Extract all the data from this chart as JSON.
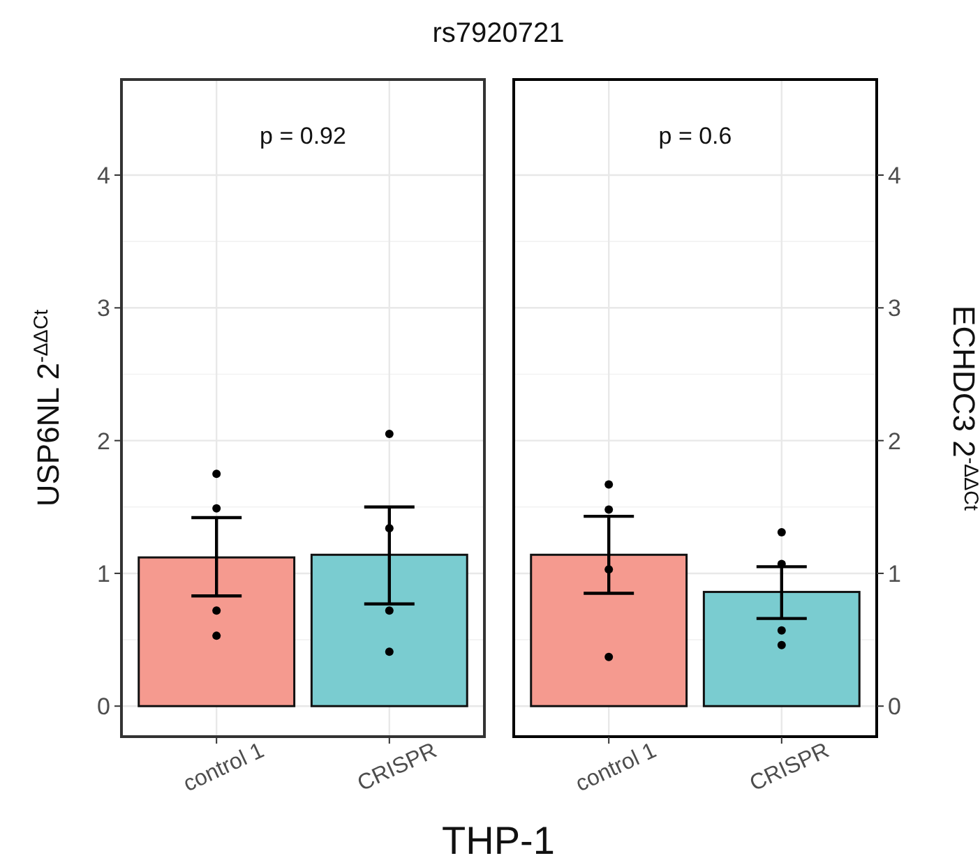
{
  "chart_data": [
    {
      "type": "bar",
      "title": "rs7920721",
      "xlabel": "THP-1",
      "ylabel": "USP6NL 2$^{-ΔΔCt}$",
      "categories": [
        "control 1",
        "CRISPR"
      ],
      "annotations": [
        "p = 0.92"
      ],
      "ylim": [
        -0.23,
        4.72
      ],
      "yticks": [
        0,
        1,
        2,
        3,
        4
      ],
      "grid": true,
      "series": [
        {
          "colors": [
            "#f59a8f",
            "#7accd0"
          ],
          "values": [
            1.12,
            1.14
          ],
          "errors": [
            [
              0.83,
              1.42
            ],
            [
              0.77,
              1.5
            ]
          ]
        },
        {
          "type": "scatter",
          "color": "#000000",
          "marker": "circle",
          "x": [
            "control 1",
            "control 1",
            "control 1",
            "control 1",
            "CRISPR",
            "CRISPR",
            "CRISPR",
            "CRISPR"
          ],
          "values": [
            1.75,
            1.49,
            0.72,
            0.53,
            2.05,
            1.34,
            0.72,
            0.41
          ]
        }
      ]
    },
    {
      "type": "bar",
      "y2label": "ECHDC3 2$^{-ΔΔCt}$",
      "categories": [
        "control 1",
        "CRISPR"
      ],
      "annotations": [
        "p = 0.6"
      ],
      "y2lim": [
        -0.23,
        4.72
      ],
      "y2ticks": [
        0,
        1,
        2,
        3,
        4
      ],
      "grid": true,
      "series": [
        {
          "axis": "y2",
          "colors": [
            "#f59a8f",
            "#7accd0"
          ],
          "values": [
            1.14,
            0.86
          ],
          "errors": [
            [
              0.85,
              1.43
            ],
            [
              0.66,
              1.05
            ]
          ]
        },
        {
          "type": "scatter",
          "axis": "y2",
          "color": "#000000",
          "marker": "circle",
          "x": [
            "control 1",
            "control 1",
            "control 1",
            "control 1",
            "CRISPR",
            "CRISPR",
            "CRISPR",
            "CRISPR"
          ],
          "values": [
            1.67,
            1.48,
            1.03,
            0.37,
            1.31,
            1.07,
            0.57,
            0.46
          ]
        }
      ]
    }
  ]
}
